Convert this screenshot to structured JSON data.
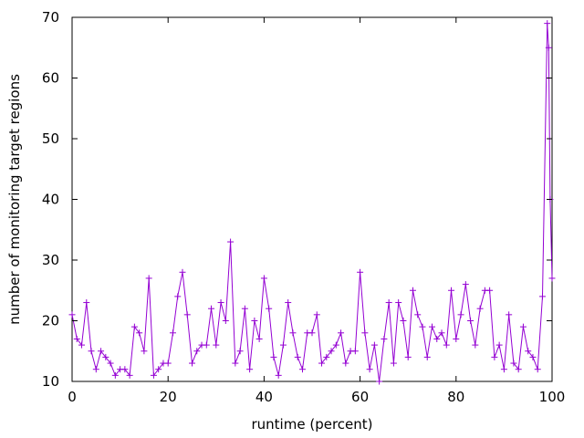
{
  "chart_data": {
    "type": "line",
    "xlabel": "runtime (percent)",
    "ylabel": "number of monitoring target regions",
    "xlim": [
      0,
      100
    ],
    "ylim": [
      10,
      70
    ],
    "xticks": [
      0,
      20,
      40,
      60,
      80,
      100
    ],
    "yticks": [
      10,
      20,
      30,
      40,
      50,
      60,
      70
    ],
    "grid": false,
    "series_color": "#9400d3",
    "series": [
      {
        "marker": "plus",
        "x": [
          0,
          1,
          2,
          3,
          4,
          5,
          6,
          7,
          8,
          9,
          10,
          11,
          12,
          13,
          14,
          15,
          16,
          17,
          18,
          19,
          20,
          21,
          22,
          23,
          24,
          25,
          26,
          27,
          28,
          29,
          30,
          31,
          32,
          33,
          34,
          35,
          36,
          37,
          38,
          39,
          40,
          41,
          42,
          43,
          44,
          45,
          46,
          47,
          48,
          49,
          50,
          51,
          52,
          53,
          54,
          55,
          56,
          57,
          58,
          59,
          60,
          61,
          62,
          63,
          64,
          65,
          66,
          67,
          68,
          69,
          70,
          71,
          72,
          73,
          74,
          75,
          76,
          77,
          78,
          79,
          80,
          81,
          82,
          83,
          84,
          85,
          86,
          87,
          88,
          89,
          90,
          91,
          92,
          93,
          94,
          95,
          96,
          97,
          98,
          99,
          99.3,
          99.6,
          100
        ],
        "y": [
          21,
          17,
          16,
          23,
          15,
          12,
          15,
          14,
          13,
          11,
          12,
          12,
          11,
          19,
          18,
          15,
          27,
          11,
          12,
          13,
          13,
          18,
          24,
          28,
          21,
          13,
          15,
          16,
          16,
          22,
          16,
          23,
          20,
          33,
          13,
          15,
          22,
          12,
          20,
          17,
          27,
          22,
          14,
          11,
          16,
          23,
          18,
          14,
          12,
          18,
          18,
          21,
          13,
          14,
          15,
          16,
          18,
          13,
          15,
          15,
          28,
          18,
          12,
          16,
          10,
          17,
          23,
          13,
          23,
          20,
          14,
          25,
          21,
          19,
          14,
          19,
          17,
          18,
          16,
          25,
          17,
          21,
          26,
          20,
          16,
          22,
          25,
          25,
          14,
          16,
          12,
          21,
          13,
          12,
          19,
          15,
          14,
          12,
          24,
          69,
          65,
          40,
          27
        ]
      }
    ]
  }
}
